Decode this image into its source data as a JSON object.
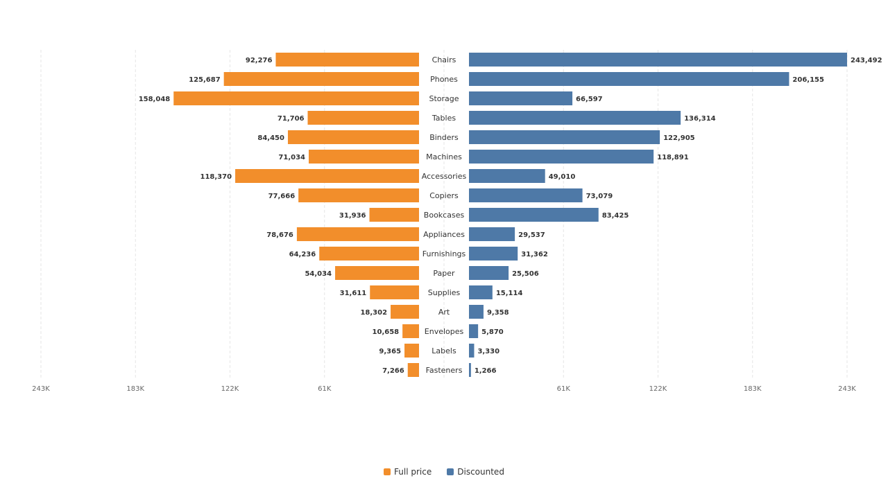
{
  "chart_data": {
    "type": "bar",
    "orientation": "horizontal",
    "layout": "butterfly",
    "categories": [
      "Chairs",
      "Phones",
      "Storage",
      "Tables",
      "Binders",
      "Machines",
      "Accessories",
      "Copiers",
      "Bookcases",
      "Appliances",
      "Furnishings",
      "Paper",
      "Supplies",
      "Art",
      "Envelopes",
      "Labels",
      "Fasteners"
    ],
    "series": [
      {
        "name": "Full price",
        "side": "left",
        "color": "#f28e2b",
        "values": [
          92276,
          125687,
          158048,
          71706,
          84450,
          71034,
          118370,
          77666,
          31936,
          78676,
          64236,
          54034,
          31611,
          18302,
          10658,
          9365,
          7266
        ],
        "value_labels": [
          "92,276",
          "125,687",
          "158,048",
          "71,706",
          "84,450",
          "71,034",
          "118,370",
          "77,666",
          "31,936",
          "78,676",
          "64,236",
          "54,034",
          "31,611",
          "18,302",
          "10,658",
          "9,365",
          "7,266"
        ]
      },
      {
        "name": "Discounted",
        "side": "right",
        "color": "#4e79a7",
        "values": [
          243492,
          206155,
          66597,
          136314,
          122905,
          118891,
          49010,
          73079,
          83425,
          29537,
          31362,
          25506,
          15114,
          9358,
          5870,
          3330,
          1266
        ],
        "value_labels": [
          "243,492",
          "206,155",
          "66,597",
          "136,314",
          "122,905",
          "118,891",
          "49,010",
          "73,079",
          "83,425",
          "29,537",
          "31,362",
          "25,506",
          "15,114",
          "9,358",
          "5,870",
          "3,330",
          "1,266"
        ]
      }
    ],
    "x_range": [
      0,
      243492
    ],
    "left_ticks": [
      "243K",
      "183K",
      "122K",
      "61K"
    ],
    "left_tick_values": [
      243492,
      182619,
      121746,
      60873
    ],
    "right_ticks": [
      "61K",
      "122K",
      "183K",
      "243K"
    ],
    "right_tick_values": [
      60873,
      121746,
      182619,
      243492
    ],
    "grid": true,
    "legend_position": "bottom-center"
  }
}
